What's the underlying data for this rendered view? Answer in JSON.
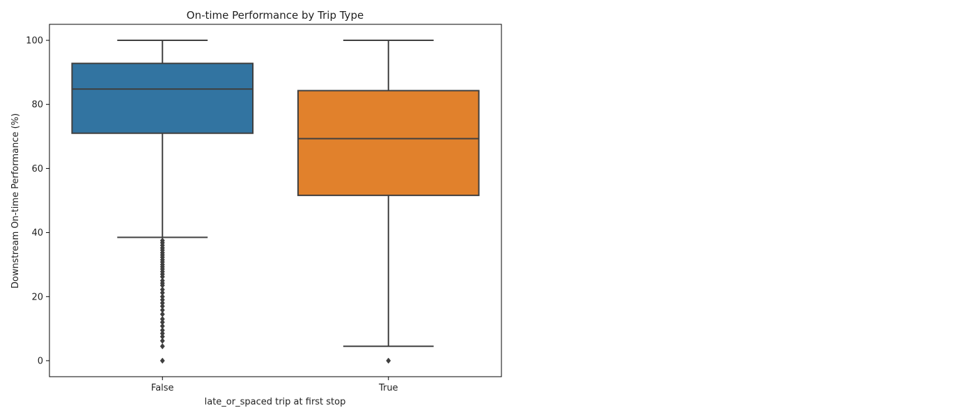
{
  "chart_data": {
    "type": "box",
    "title": "On-time Performance by Trip Type",
    "xlabel": "late_or_spaced trip at first stop",
    "ylabel": "Downstream On-time Performance (%)",
    "ylim": [
      -5,
      105
    ],
    "yticks": [
      0,
      20,
      40,
      60,
      80,
      100
    ],
    "grid": false,
    "categories": [
      "False",
      "True"
    ],
    "series": [
      {
        "category": "False",
        "color": "#3274a1",
        "whisker_low": 38.5,
        "q1": 71.0,
        "median": 84.8,
        "q3": 92.8,
        "whisker_high": 100,
        "outliers": [
          37.5,
          36.8,
          36.0,
          35.2,
          34.5,
          33.7,
          33.0,
          32.3,
          31.5,
          30.8,
          30.0,
          29.3,
          28.6,
          27.8,
          27.0,
          26.2,
          25.0,
          24.2,
          23.5,
          22.2,
          21.2,
          20.0,
          19.0,
          18.0,
          17.0,
          15.8,
          14.5,
          13.0,
          12.0,
          10.8,
          9.5,
          8.5,
          7.5,
          6.2,
          4.5,
          0
        ]
      },
      {
        "category": "True",
        "color": "#e1812c",
        "whisker_low": 4.5,
        "q1": 51.6,
        "median": 69.3,
        "q3": 84.3,
        "whisker_high": 100,
        "outliers": [
          0
        ]
      }
    ]
  }
}
